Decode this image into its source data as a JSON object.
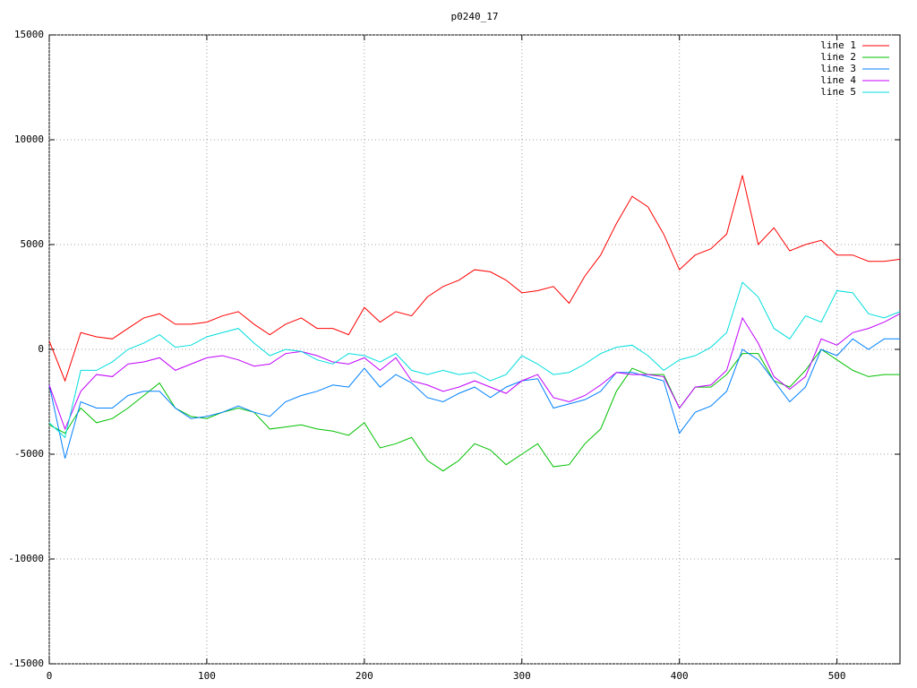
{
  "chart_data": {
    "type": "line",
    "title": "p0240_17",
    "x": [
      0,
      10,
      20,
      30,
      40,
      50,
      60,
      70,
      80,
      90,
      100,
      110,
      120,
      130,
      140,
      150,
      160,
      170,
      180,
      190,
      200,
      210,
      220,
      230,
      240,
      250,
      260,
      270,
      280,
      290,
      300,
      310,
      320,
      330,
      340,
      350,
      360,
      370,
      380,
      390,
      400,
      410,
      420,
      430,
      440,
      450,
      460,
      470,
      480,
      490,
      500,
      510,
      520,
      530,
      540
    ],
    "xlim": [
      0,
      540
    ],
    "xticks": [
      0,
      100,
      200,
      300,
      400,
      500
    ],
    "ylim": [
      -15000,
      15000
    ],
    "yticks": [
      -15000,
      -10000,
      -5000,
      0,
      5000,
      10000,
      15000
    ],
    "grid": true,
    "legend": "top-right",
    "series": [
      {
        "name": "line 1",
        "color": "#ff0000",
        "values": [
          400,
          -1500,
          800,
          600,
          500,
          1000,
          1500,
          1700,
          1200,
          1200,
          1300,
          1600,
          1800,
          1200,
          700,
          1200,
          1500,
          1000,
          1000,
          700,
          2000,
          1300,
          1800,
          1600,
          2500,
          3000,
          3300,
          3800,
          3700,
          3300,
          2700,
          2800,
          3000,
          2200,
          3500,
          4500,
          6000,
          7300,
          6800,
          5500,
          3800,
          4500,
          4800,
          5500,
          8300,
          5000,
          5800,
          4700,
          5000,
          5200,
          4500,
          4500,
          4200,
          4200,
          4300
        ]
      },
      {
        "name": "line 2",
        "color": "#00c000",
        "values": [
          -3600,
          -4000,
          -2800,
          -3500,
          -3300,
          -2800,
          -2200,
          -1600,
          -2800,
          -3200,
          -3300,
          -3000,
          -2800,
          -3000,
          -3800,
          -3700,
          -3600,
          -3800,
          -3900,
          -4100,
          -3500,
          -4700,
          -4500,
          -4200,
          -5300,
          -5800,
          -5300,
          -4500,
          -4800,
          -5500,
          -5000,
          -4500,
          -5600,
          -5500,
          -4500,
          -3800,
          -2000,
          -900,
          -1200,
          -1200,
          -2800,
          -1800,
          -1800,
          -1200,
          -200,
          -200,
          -1500,
          -1800,
          -1000,
          0,
          -500,
          -1000,
          -1300,
          -1200,
          -1200
        ]
      },
      {
        "name": "line 3",
        "color": "#0080ff",
        "values": [
          -1700,
          -5200,
          -2500,
          -2800,
          -2800,
          -2200,
          -2000,
          -2000,
          -2800,
          -3300,
          -3200,
          -3000,
          -2700,
          -3000,
          -3200,
          -2500,
          -2200,
          -2000,
          -1700,
          -1800,
          -900,
          -1800,
          -1200,
          -1600,
          -2300,
          -2500,
          -2100,
          -1800,
          -2300,
          -1800,
          -1500,
          -1400,
          -2800,
          -2600,
          -2400,
          -2000,
          -1100,
          -1100,
          -1300,
          -1500,
          -4000,
          -3000,
          -2700,
          -2000,
          0,
          -500,
          -1500,
          -2500,
          -1800,
          0,
          -300,
          500,
          0,
          500,
          500
        ]
      },
      {
        "name": "line 4",
        "color": "#c000ff",
        "values": [
          -1700,
          -3800,
          -2000,
          -1200,
          -1300,
          -700,
          -600,
          -400,
          -1000,
          -700,
          -400,
          -300,
          -500,
          -800,
          -700,
          -200,
          -100,
          -300,
          -600,
          -700,
          -400,
          -1000,
          -400,
          -1500,
          -1700,
          -2000,
          -1800,
          -1500,
          -1800,
          -2100,
          -1500,
          -1200,
          -2300,
          -2500,
          -2200,
          -1700,
          -1100,
          -1200,
          -1200,
          -1300,
          -2800,
          -1800,
          -1700,
          -1000,
          1500,
          300,
          -1300,
          -1900,
          -1300,
          500,
          200,
          800,
          1000,
          1300,
          1700
        ]
      },
      {
        "name": "line 5",
        "color": "#00dddd",
        "values": [
          -3500,
          -4200,
          -1000,
          -1000,
          -600,
          0,
          300,
          700,
          100,
          200,
          600,
          800,
          1000,
          300,
          -300,
          0,
          -100,
          -500,
          -700,
          -200,
          -300,
          -600,
          -200,
          -1000,
          -1200,
          -1000,
          -1200,
          -1100,
          -1500,
          -1200,
          -300,
          -700,
          -1200,
          -1100,
          -700,
          -200,
          100,
          200,
          -300,
          -1000,
          -500,
          -300,
          100,
          800,
          3200,
          2500,
          1000,
          500,
          1600,
          1300,
          2800,
          2700,
          1700,
          1500,
          1800
        ]
      }
    ]
  }
}
